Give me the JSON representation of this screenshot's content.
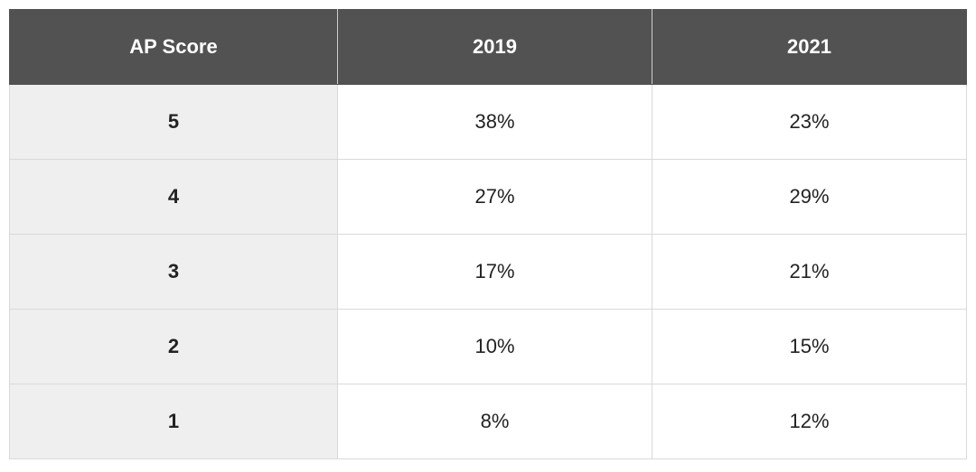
{
  "table": {
    "header": [
      "AP Score",
      "2019",
      "2021"
    ],
    "rows": [
      [
        "5",
        "38%",
        "23%"
      ],
      [
        "4",
        "27%",
        "29%"
      ],
      [
        "3",
        "17%",
        "21%"
      ],
      [
        "2",
        "10%",
        "15%"
      ],
      [
        "1",
        "8%",
        "12%"
      ]
    ]
  }
}
